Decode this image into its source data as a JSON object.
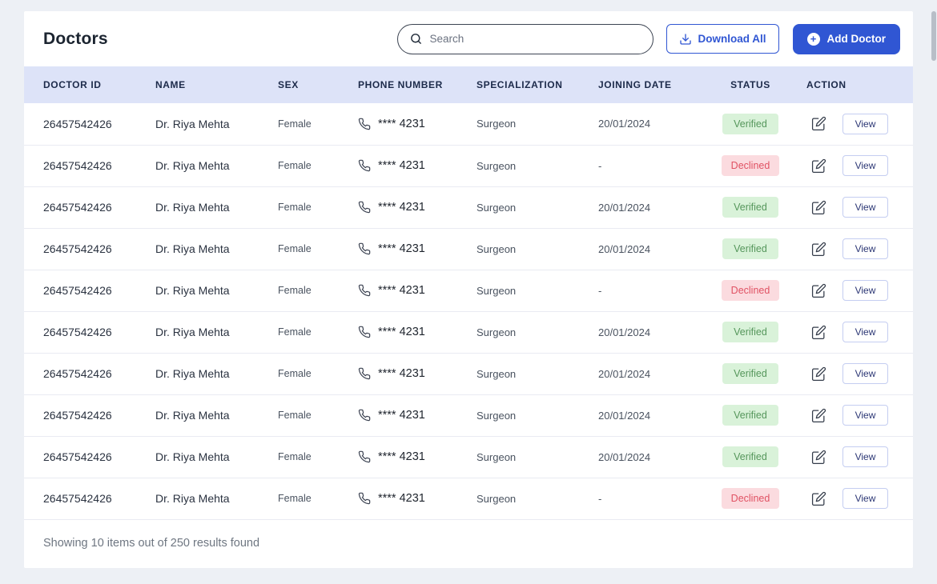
{
  "header": {
    "title": "Doctors",
    "search": {
      "placeholder": "Search"
    },
    "download_all_label": "Download All",
    "add_doctor_label": "Add Doctor"
  },
  "icons": {
    "add_plus": "+"
  },
  "table": {
    "headers": [
      "DOCTOR ID",
      "NAME",
      "SEX",
      "PHONE NUMBER",
      "SPECIALIZATION",
      "JOINING DATE",
      "STATUS",
      "ACTION"
    ],
    "view_label": "View",
    "rows": [
      {
        "doctor_id": "26457542426",
        "name": "Dr. Riya Mehta",
        "sex": "Female",
        "phone": "**** 4231",
        "specialization": "Surgeon",
        "joining_date": "20/01/2024",
        "status": "Verified"
      },
      {
        "doctor_id": "26457542426",
        "name": "Dr. Riya Mehta",
        "sex": "Female",
        "phone": "**** 4231",
        "specialization": "Surgeon",
        "joining_date": "-",
        "status": "Declined"
      },
      {
        "doctor_id": "26457542426",
        "name": "Dr. Riya Mehta",
        "sex": "Female",
        "phone": "**** 4231",
        "specialization": "Surgeon",
        "joining_date": "20/01/2024",
        "status": "Verified"
      },
      {
        "doctor_id": "26457542426",
        "name": "Dr. Riya Mehta",
        "sex": "Female",
        "phone": "**** 4231",
        "specialization": "Surgeon",
        "joining_date": "20/01/2024",
        "status": "Verified"
      },
      {
        "doctor_id": "26457542426",
        "name": "Dr. Riya Mehta",
        "sex": "Female",
        "phone": "**** 4231",
        "specialization": "Surgeon",
        "joining_date": "-",
        "status": "Declined"
      },
      {
        "doctor_id": "26457542426",
        "name": "Dr. Riya Mehta",
        "sex": "Female",
        "phone": "**** 4231",
        "specialization": "Surgeon",
        "joining_date": "20/01/2024",
        "status": "Verified"
      },
      {
        "doctor_id": "26457542426",
        "name": "Dr. Riya Mehta",
        "sex": "Female",
        "phone": "**** 4231",
        "specialization": "Surgeon",
        "joining_date": "20/01/2024",
        "status": "Verified"
      },
      {
        "doctor_id": "26457542426",
        "name": "Dr. Riya Mehta",
        "sex": "Female",
        "phone": "**** 4231",
        "specialization": "Surgeon",
        "joining_date": "20/01/2024",
        "status": "Verified"
      },
      {
        "doctor_id": "26457542426",
        "name": "Dr. Riya Mehta",
        "sex": "Female",
        "phone": "**** 4231",
        "specialization": "Surgeon",
        "joining_date": "20/01/2024",
        "status": "Verified"
      },
      {
        "doctor_id": "26457542426",
        "name": "Dr. Riya Mehta",
        "sex": "Female",
        "phone": "**** 4231",
        "specialization": "Surgeon",
        "joining_date": "-",
        "status": "Declined"
      }
    ]
  },
  "footer": {
    "summary": "Showing 10 items out of 250 results found"
  },
  "colors": {
    "accent_blue": "#3056d3",
    "header_bg": "#dde3f8",
    "verified_bg": "#d9f2d9",
    "verified_text": "#55965b",
    "declined_bg": "#fbdbdf",
    "declined_text": "#e05263"
  }
}
